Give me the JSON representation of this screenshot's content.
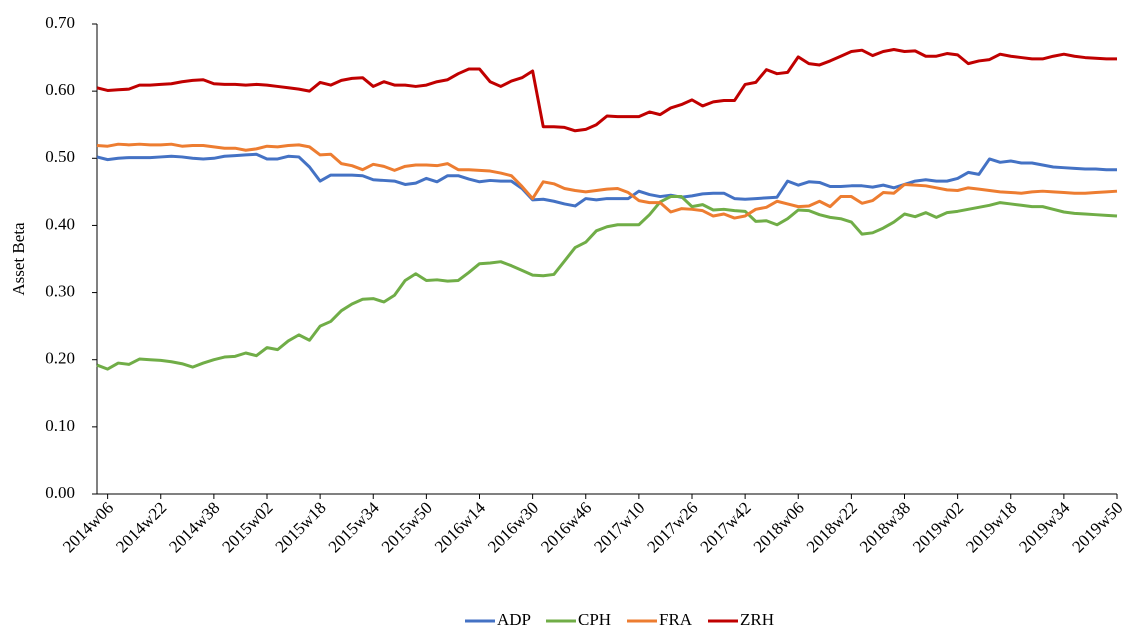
{
  "chart_data": {
    "type": "line",
    "y_label": "Asset Beta",
    "categories": [
      null,
      "2014w06",
      null,
      null,
      null,
      null,
      "2014w22",
      null,
      null,
      null,
      null,
      "2014w38",
      null,
      null,
      null,
      null,
      "2015w02",
      null,
      null,
      null,
      null,
      "2015w18",
      null,
      null,
      null,
      null,
      "2015w34",
      null,
      null,
      null,
      null,
      "2015w50",
      null,
      null,
      null,
      null,
      "2016w14",
      null,
      null,
      null,
      null,
      "2016w30",
      null,
      null,
      null,
      null,
      "2016w46",
      null,
      null,
      null,
      null,
      "2017w10",
      null,
      null,
      null,
      null,
      "2017w26",
      null,
      null,
      null,
      null,
      "2017w42",
      null,
      null,
      null,
      null,
      "2018w06",
      null,
      null,
      null,
      null,
      "2018w22",
      null,
      null,
      null,
      null,
      "2018w38",
      null,
      null,
      null,
      null,
      "2019w02",
      null,
      null,
      null,
      null,
      "2019w18",
      null,
      null,
      null,
      null,
      "2019w34",
      null,
      null,
      null,
      null,
      "2019w50"
    ],
    "series": [
      {
        "name": "ADP",
        "color": "#4472c4",
        "values": [
          0.502,
          0.498,
          0.5,
          0.501,
          0.501,
          0.501,
          0.502,
          0.503,
          0.502,
          0.5,
          0.499,
          0.5,
          0.503,
          0.504,
          0.505,
          0.506,
          0.499,
          0.499,
          0.503,
          0.502,
          0.487,
          0.466,
          0.475,
          0.475,
          0.475,
          0.474,
          0.468,
          0.467,
          0.466,
          0.461,
          0.463,
          0.47,
          0.465,
          0.474,
          0.474,
          0.469,
          0.465,
          0.467,
          0.466,
          0.466,
          0.455,
          0.438,
          0.439,
          0.436,
          0.432,
          0.429,
          0.44,
          0.438,
          0.44,
          0.44,
          0.44,
          0.451,
          0.446,
          0.443,
          0.445,
          0.442,
          0.444,
          0.447,
          0.448,
          0.448,
          0.44,
          0.439,
          0.44,
          0.441,
          0.442,
          0.466,
          0.46,
          0.465,
          0.464,
          0.458,
          0.458,
          0.459,
          0.459,
          0.457,
          0.46,
          0.456,
          0.461,
          0.466,
          0.468,
          0.466,
          0.466,
          0.47,
          0.479,
          0.476,
          0.499,
          0.494,
          0.496,
          0.493,
          0.493,
          0.49,
          0.487,
          0.486,
          0.485,
          0.484,
          0.484,
          0.483,
          0.483
        ]
      },
      {
        "name": "CPH",
        "color": "#70ad47",
        "values": [
          0.192,
          0.186,
          0.195,
          0.193,
          0.201,
          0.2,
          0.199,
          0.197,
          0.194,
          0.189,
          0.195,
          0.2,
          0.204,
          0.205,
          0.21,
          0.206,
          0.218,
          0.215,
          0.228,
          0.237,
          0.229,
          0.25,
          0.257,
          0.273,
          0.283,
          0.29,
          0.291,
          0.286,
          0.296,
          0.318,
          0.328,
          0.318,
          0.319,
          0.317,
          0.318,
          0.33,
          0.343,
          0.344,
          0.346,
          0.34,
          0.333,
          0.326,
          0.325,
          0.327,
          0.347,
          0.367,
          0.375,
          0.392,
          0.398,
          0.401,
          0.401,
          0.401,
          0.416,
          0.435,
          0.443,
          0.443,
          0.428,
          0.431,
          0.423,
          0.424,
          0.422,
          0.421,
          0.406,
          0.407,
          0.401,
          0.41,
          0.423,
          0.422,
          0.416,
          0.412,
          0.41,
          0.405,
          0.387,
          0.389,
          0.396,
          0.405,
          0.417,
          0.413,
          0.419,
          0.412,
          0.419,
          0.421,
          0.424,
          0.427,
          0.43,
          0.434,
          0.432,
          0.43,
          0.428,
          0.428,
          0.424,
          0.42,
          0.418,
          0.417,
          0.416,
          0.415,
          0.414
        ]
      },
      {
        "name": "FRA",
        "color": "#ed7d31",
        "values": [
          0.519,
          0.518,
          0.521,
          0.52,
          0.521,
          0.52,
          0.52,
          0.521,
          0.518,
          0.519,
          0.519,
          0.517,
          0.515,
          0.515,
          0.512,
          0.514,
          0.518,
          0.517,
          0.519,
          0.52,
          0.517,
          0.505,
          0.506,
          0.492,
          0.489,
          0.483,
          0.491,
          0.488,
          0.482,
          0.488,
          0.49,
          0.49,
          0.489,
          0.492,
          0.483,
          0.483,
          0.482,
          0.481,
          0.478,
          0.474,
          0.458,
          0.44,
          0.465,
          0.462,
          0.455,
          0.452,
          0.45,
          0.452,
          0.454,
          0.455,
          0.449,
          0.437,
          0.434,
          0.434,
          0.42,
          0.425,
          0.424,
          0.422,
          0.414,
          0.417,
          0.411,
          0.414,
          0.424,
          0.427,
          0.436,
          0.432,
          0.428,
          0.429,
          0.436,
          0.428,
          0.443,
          0.443,
          0.433,
          0.437,
          0.449,
          0.448,
          0.461,
          0.46,
          0.459,
          0.456,
          0.453,
          0.452,
          0.456,
          0.454,
          0.452,
          0.45,
          0.449,
          0.448,
          0.45,
          0.451,
          0.45,
          0.449,
          0.448,
          0.448,
          0.449,
          0.45,
          0.451
        ]
      },
      {
        "name": "ZRH",
        "color": "#c00000",
        "values": [
          0.605,
          0.601,
          0.602,
          0.603,
          0.609,
          0.609,
          0.61,
          0.611,
          0.614,
          0.616,
          0.617,
          0.611,
          0.61,
          0.61,
          0.609,
          0.61,
          0.609,
          0.607,
          0.605,
          0.603,
          0.6,
          0.613,
          0.609,
          0.616,
          0.619,
          0.62,
          0.607,
          0.614,
          0.609,
          0.609,
          0.607,
          0.609,
          0.614,
          0.617,
          0.626,
          0.633,
          0.633,
          0.614,
          0.607,
          0.615,
          0.62,
          0.63,
          0.547,
          0.547,
          0.546,
          0.541,
          0.543,
          0.55,
          0.563,
          0.562,
          0.562,
          0.562,
          0.569,
          0.565,
          0.575,
          0.58,
          0.587,
          0.578,
          0.584,
          0.586,
          0.586,
          0.61,
          0.613,
          0.632,
          0.626,
          0.628,
          0.651,
          0.641,
          0.639,
          0.645,
          0.652,
          0.659,
          0.661,
          0.653,
          0.659,
          0.662,
          0.659,
          0.66,
          0.652,
          0.652,
          0.656,
          0.654,
          0.641,
          0.645,
          0.647,
          0.655,
          0.652,
          0.65,
          0.648,
          0.648,
          0.652,
          0.655,
          0.652,
          0.65,
          0.649,
          0.648,
          0.648
        ]
      }
    ],
    "ylim": [
      0,
      0.7
    ],
    "yticks": [
      {
        "value": 0,
        "label": "0.00"
      },
      {
        "value": 0.1,
        "label": "0.10"
      },
      {
        "value": 0.2,
        "label": "0.20"
      },
      {
        "value": 0.3,
        "label": "0.30"
      },
      {
        "value": 0.4,
        "label": "0.40"
      },
      {
        "value": 0.5,
        "label": "0.50"
      },
      {
        "value": 0.6,
        "label": "0.60"
      },
      {
        "value": 0.7,
        "label": "0.70"
      }
    ],
    "grid": false,
    "legend": "bottom"
  }
}
